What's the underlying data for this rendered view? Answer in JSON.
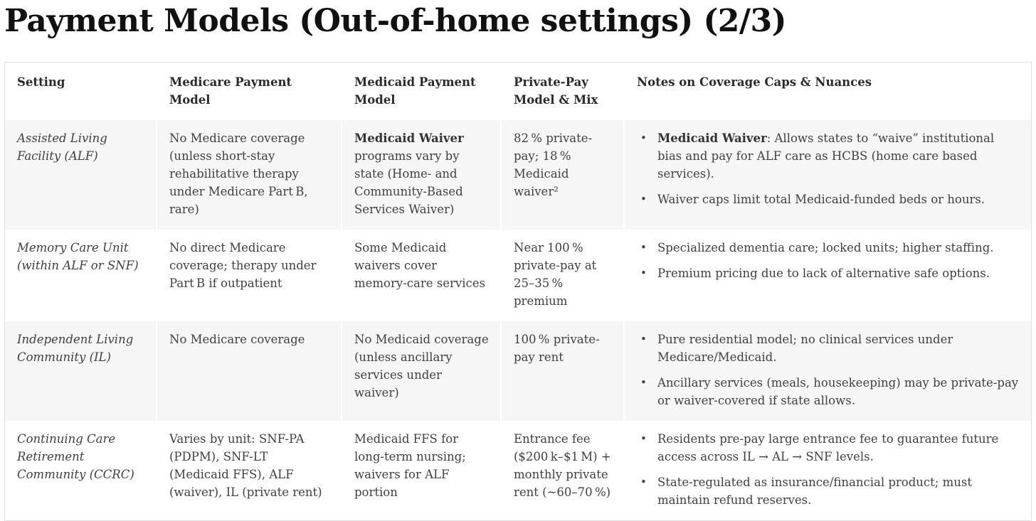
{
  "page": {
    "title": "Payment Models (Out-of-home settings) (2/3)"
  },
  "colors": {
    "row_stripe": "#f6f6f6",
    "table_border": "#e2e2e2",
    "title_text": "#111111",
    "body_text": "#404040"
  },
  "table": {
    "headers": [
      "Setting",
      "Medicare Payment Model",
      "Medicaid Payment Model",
      "Private-Pay Model & Mix",
      "Notes on Coverage Caps & Nuances"
    ],
    "rows": [
      {
        "setting": "Assisted Living Facility (ALF)",
        "medicare": "No Medicare coverage (unless short-stay rehabilitative therapy under Medicare Part B, rare)",
        "medicaid_bold": "Medicaid Waiver",
        "medicaid_rest": " programs vary by state (Home- and Community-Based Services Waiver)",
        "private_pay": "82 % private-pay; 18 % Medicaid waiver²",
        "notes": [
          {
            "bold": "Medicaid Waiver",
            "rest": ": Allows states to “waive” institutional bias and pay for ALF care as HCBS (home care based services)."
          },
          {
            "bold": "",
            "rest": "Waiver caps limit total Medicaid-funded beds or hours."
          }
        ]
      },
      {
        "setting": "Memory Care Unit (within ALF or SNF)",
        "medicare": "No direct Medicare coverage; therapy under Part B if outpatient",
        "medicaid_bold": "",
        "medicaid_rest": "Some Medicaid waivers cover memory-care services",
        "private_pay": "Near 100 % private-pay at 25–35 % premium",
        "notes": [
          {
            "bold": "",
            "rest": "Specialized dementia care; locked units; higher staffing."
          },
          {
            "bold": "",
            "rest": "Premium pricing due to lack of alternative safe options."
          }
        ]
      },
      {
        "setting": "Independent Living Community (IL)",
        "medicare": "No Medicare coverage",
        "medicaid_bold": "",
        "medicaid_rest": "No Medicaid coverage (unless ancillary services under waiver)",
        "private_pay": "100 % private-pay rent",
        "notes": [
          {
            "bold": "",
            "rest": "Pure residential model; no clinical services under Medicare/Medicaid."
          },
          {
            "bold": "",
            "rest": "Ancillary services (meals, housekeeping) may be private-pay or waiver-covered if state allows."
          }
        ]
      },
      {
        "setting": "Continuing Care Retirement Community (CCRC)",
        "medicare": "Varies by unit: SNF-PA (PDPM), SNF-LT (Medicaid FFS), ALF (waiver), IL (private rent)",
        "medicaid_bold": "",
        "medicaid_rest": "Medicaid FFS for long-term nursing; waivers for ALF portion",
        "private_pay": "Entrance fee ($200 k–$1 M) + monthly private rent (~60–70 %)",
        "notes": [
          {
            "bold": "",
            "rest": "Residents pre-pay large entrance fee to guarantee future access across IL → AL → SNF levels."
          },
          {
            "bold": "",
            "rest": "State-regulated as insurance/financial product; must maintain refund reserves."
          }
        ]
      }
    ]
  }
}
